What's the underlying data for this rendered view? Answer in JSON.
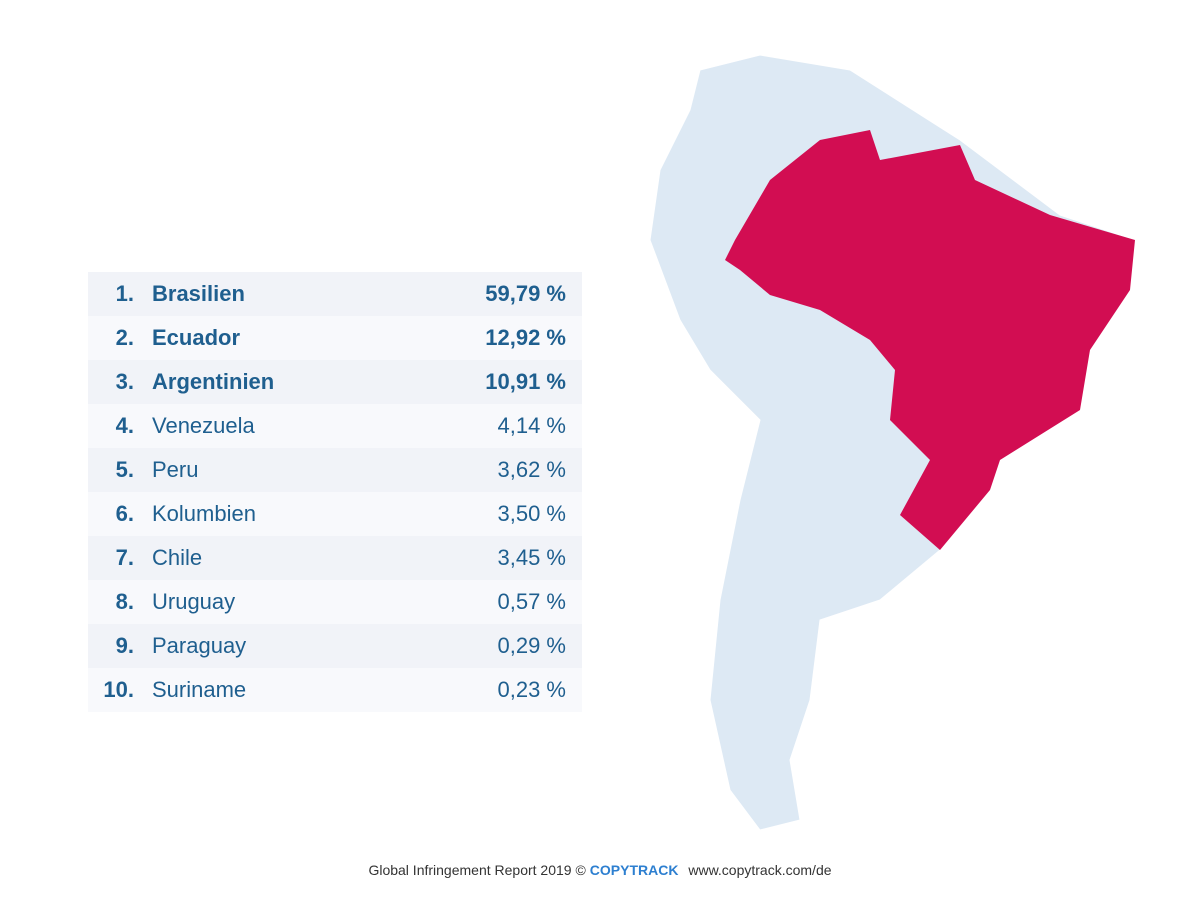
{
  "table": {
    "rows": [
      {
        "rank": "1.",
        "country": "Brasilien",
        "share": "59,79 %",
        "bold": true
      },
      {
        "rank": "2.",
        "country": "Ecuador",
        "share": "12,92 %",
        "bold": true
      },
      {
        "rank": "3.",
        "country": "Argentinien",
        "share": "10,91 %",
        "bold": true
      },
      {
        "rank": "4.",
        "country": "Venezuela",
        "share": "4,14 %",
        "bold": false
      },
      {
        "rank": "5.",
        "country": "Peru",
        "share": "3,62 %",
        "bold": false
      },
      {
        "rank": "6.",
        "country": "Kolumbien",
        "share": "3,50 %",
        "bold": false
      },
      {
        "rank": "7.",
        "country": "Chile",
        "share": "3,45 %",
        "bold": false
      },
      {
        "rank": "8.",
        "country": "Uruguay",
        "share": "0,57 %",
        "bold": false
      },
      {
        "rank": "9.",
        "country": "Paraguay",
        "share": "0,29 %",
        "bold": false
      },
      {
        "rank": "10.",
        "country": "Suriname",
        "share": "0,23 %",
        "bold": false
      }
    ]
  },
  "footer": {
    "report": "Global Infringement Report 2019",
    "copyright": "©",
    "brand": "COPYTRACK",
    "url": "www.copytrack.com/de"
  }
}
